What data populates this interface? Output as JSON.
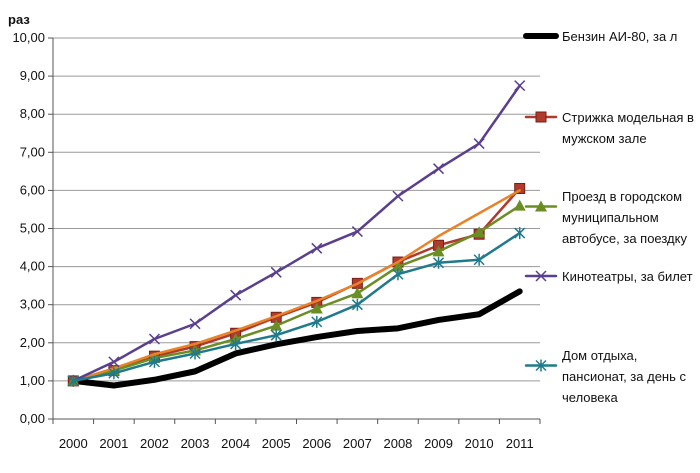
{
  "chart_data": {
    "type": "line",
    "ylabel": "раз",
    "ylim": [
      0,
      10
    ],
    "ytick_labels": [
      "0,00",
      "1,00",
      "2,00",
      "3,00",
      "4,00",
      "5,00",
      "6,00",
      "7,00",
      "8,00",
      "9,00",
      "10,00"
    ],
    "categories": [
      "2000",
      "2001",
      "2002",
      "2003",
      "2004",
      "2005",
      "2006",
      "2007",
      "2008",
      "2009",
      "2010",
      "2011"
    ],
    "grid": "horizontal",
    "legend_position": "right",
    "series": [
      {
        "name": "Бензин АИ-80, за л",
        "legend_lines": [
          "Бензин АИ-80, за л"
        ],
        "color": "#000000",
        "marker": "none",
        "width": 6,
        "values": [
          1.0,
          0.88,
          1.03,
          1.25,
          1.72,
          1.96,
          2.15,
          2.31,
          2.38,
          2.6,
          2.75,
          3.35
        ]
      },
      {
        "name": "Стрижка модельная в мужском зале",
        "legend_lines": [
          "Стрижка модельная в",
          "мужском зале"
        ],
        "color": "#b03a2e",
        "marker": "square",
        "width": 2.5,
        "values": [
          1.0,
          1.27,
          1.65,
          1.9,
          2.25,
          2.67,
          3.06,
          3.56,
          4.12,
          4.56,
          4.85,
          6.05
        ]
      },
      {
        "name": "Проезд в городском муниципальном автобусе, за поездку",
        "legend_lines": [
          "Проезд в городском",
          "муниципальном",
          "автобусе, за поездку"
        ],
        "color": "#6a8e23",
        "marker": "triangle",
        "width": 2.5,
        "values": [
          1.0,
          1.27,
          1.6,
          1.8,
          2.1,
          2.45,
          2.9,
          3.3,
          4.0,
          4.4,
          4.9,
          5.6
        ]
      },
      {
        "name": "",
        "legend_lines": [],
        "color": "#e8832a",
        "marker": "none",
        "width": 2.5,
        "values": [
          1.0,
          1.33,
          1.7,
          1.97,
          2.32,
          2.7,
          3.1,
          3.55,
          4.12,
          4.8,
          5.4,
          6.0
        ]
      },
      {
        "name": "Кинотеатры, за билет",
        "legend_lines": [
          "Кинотеатры, за билет"
        ],
        "color": "#5b3f8f",
        "marker": "x",
        "width": 2.5,
        "values": [
          1.0,
          1.5,
          2.1,
          2.5,
          3.25,
          3.85,
          4.48,
          4.92,
          5.85,
          6.57,
          7.23,
          8.75
        ]
      },
      {
        "name": "Дом отдыха, пансионат, за день с человека",
        "legend_lines": [
          "Дом отдыха,",
          "пансионат, за день с",
          "человека"
        ],
        "color": "#1f7a8c",
        "marker": "asterisk",
        "width": 2.5,
        "values": [
          1.0,
          1.2,
          1.5,
          1.72,
          1.97,
          2.2,
          2.55,
          3.0,
          3.8,
          4.1,
          4.18,
          4.88
        ]
      }
    ]
  }
}
